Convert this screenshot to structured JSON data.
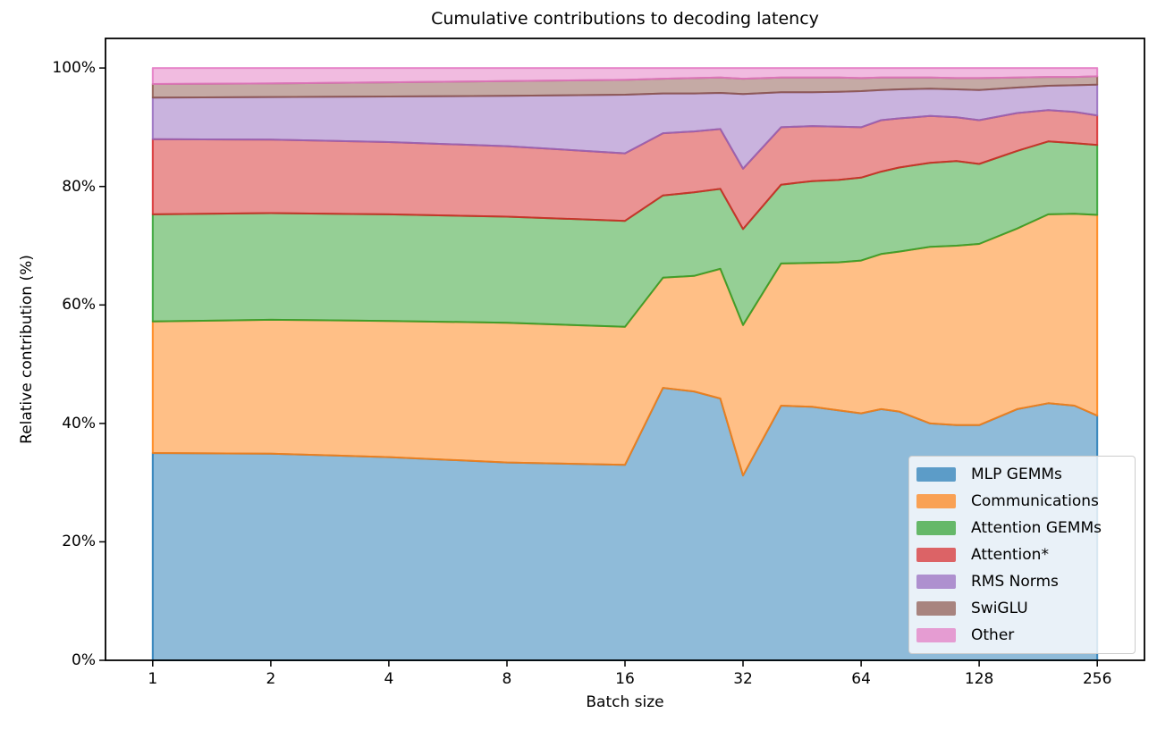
{
  "figure": {
    "title": "Cumulative contributions to decoding latency",
    "xlabel": "Batch size",
    "ylabel": "Relative contribution (%)"
  },
  "chart_data": {
    "type": "area",
    "stacked": true,
    "title": "Cumulative contributions to decoding latency",
    "xlabel": "Batch size",
    "ylabel": "Relative contribution (%)",
    "x_scale": "log2",
    "grid": false,
    "legend_position": "lower right",
    "xlim_log2": [
      -0.4,
      8.4
    ],
    "ylim": [
      0,
      105
    ],
    "x_ticks": [
      1,
      2,
      4,
      8,
      16,
      32,
      64,
      128,
      256
    ],
    "x_tick_labels": [
      "1",
      "2",
      "4",
      "8",
      "16",
      "32",
      "64",
      "128",
      "256"
    ],
    "y_ticks": [
      0,
      20,
      40,
      60,
      80,
      100
    ],
    "y_tick_labels": [
      "0%",
      "20%",
      "40%",
      "60%",
      "80%",
      "100%"
    ],
    "x": [
      1,
      2,
      4,
      8,
      16,
      20,
      24,
      28,
      32,
      40,
      48,
      56,
      64,
      72,
      80,
      96,
      112,
      128,
      160,
      192,
      224,
      256
    ],
    "series": [
      {
        "name": "MLP GEMMs",
        "color": "#1f77b4",
        "values": [
          35.0,
          34.9,
          34.3,
          33.4,
          33.0,
          46.0,
          45.4,
          44.2,
          31.2,
          43.0,
          42.8,
          42.2,
          41.7,
          42.4,
          42.0,
          40.0,
          39.7,
          39.7,
          42.4,
          43.4,
          43.0,
          41.3
        ]
      },
      {
        "name": "Communications",
        "color": "#ff7f0e",
        "values": [
          22.2,
          22.6,
          23.0,
          23.6,
          23.3,
          18.6,
          19.5,
          21.9,
          25.4,
          24.0,
          24.3,
          25.0,
          25.8,
          26.2,
          27.0,
          29.8,
          30.3,
          30.6,
          30.5,
          31.9,
          32.4,
          33.9
        ]
      },
      {
        "name": "Attention GEMMs",
        "color": "#2ca02c",
        "values": [
          18.1,
          18.0,
          18.0,
          17.9,
          17.9,
          13.9,
          14.1,
          13.5,
          16.2,
          13.3,
          13.8,
          13.9,
          14.0,
          13.9,
          14.2,
          14.2,
          14.3,
          13.5,
          13.1,
          12.3,
          11.9,
          11.8
        ]
      },
      {
        "name": "Attention*",
        "color": "#d62728",
        "values": [
          12.7,
          12.4,
          12.2,
          11.9,
          11.4,
          10.5,
          10.3,
          10.1,
          10.2,
          9.7,
          9.3,
          9.0,
          8.5,
          8.7,
          8.3,
          7.9,
          7.4,
          7.4,
          6.4,
          5.3,
          5.3,
          5.0
        ]
      },
      {
        "name": "RMS Norms",
        "color": "#9467bd",
        "values": [
          7.0,
          7.2,
          7.7,
          8.5,
          9.9,
          6.7,
          6.4,
          6.1,
          12.6,
          5.9,
          5.7,
          5.9,
          6.1,
          5.1,
          4.9,
          4.6,
          4.7,
          5.1,
          4.3,
          4.1,
          4.5,
          5.2
        ]
      },
      {
        "name": "SwiGLU",
        "color": "#8c564b",
        "values": [
          2.3,
          2.3,
          2.4,
          2.5,
          2.5,
          2.5,
          2.6,
          2.6,
          2.6,
          2.5,
          2.5,
          2.4,
          2.2,
          2.1,
          2.0,
          1.9,
          1.9,
          2.0,
          1.7,
          1.5,
          1.4,
          1.4
        ]
      },
      {
        "name": "Other",
        "color": "#e377c2",
        "values": [
          2.7,
          2.6,
          2.4,
          2.2,
          2.0,
          1.8,
          1.7,
          1.6,
          1.8,
          1.6,
          1.6,
          1.6,
          1.7,
          1.6,
          1.6,
          1.6,
          1.7,
          1.7,
          1.6,
          1.5,
          1.5,
          1.4
        ]
      }
    ]
  }
}
